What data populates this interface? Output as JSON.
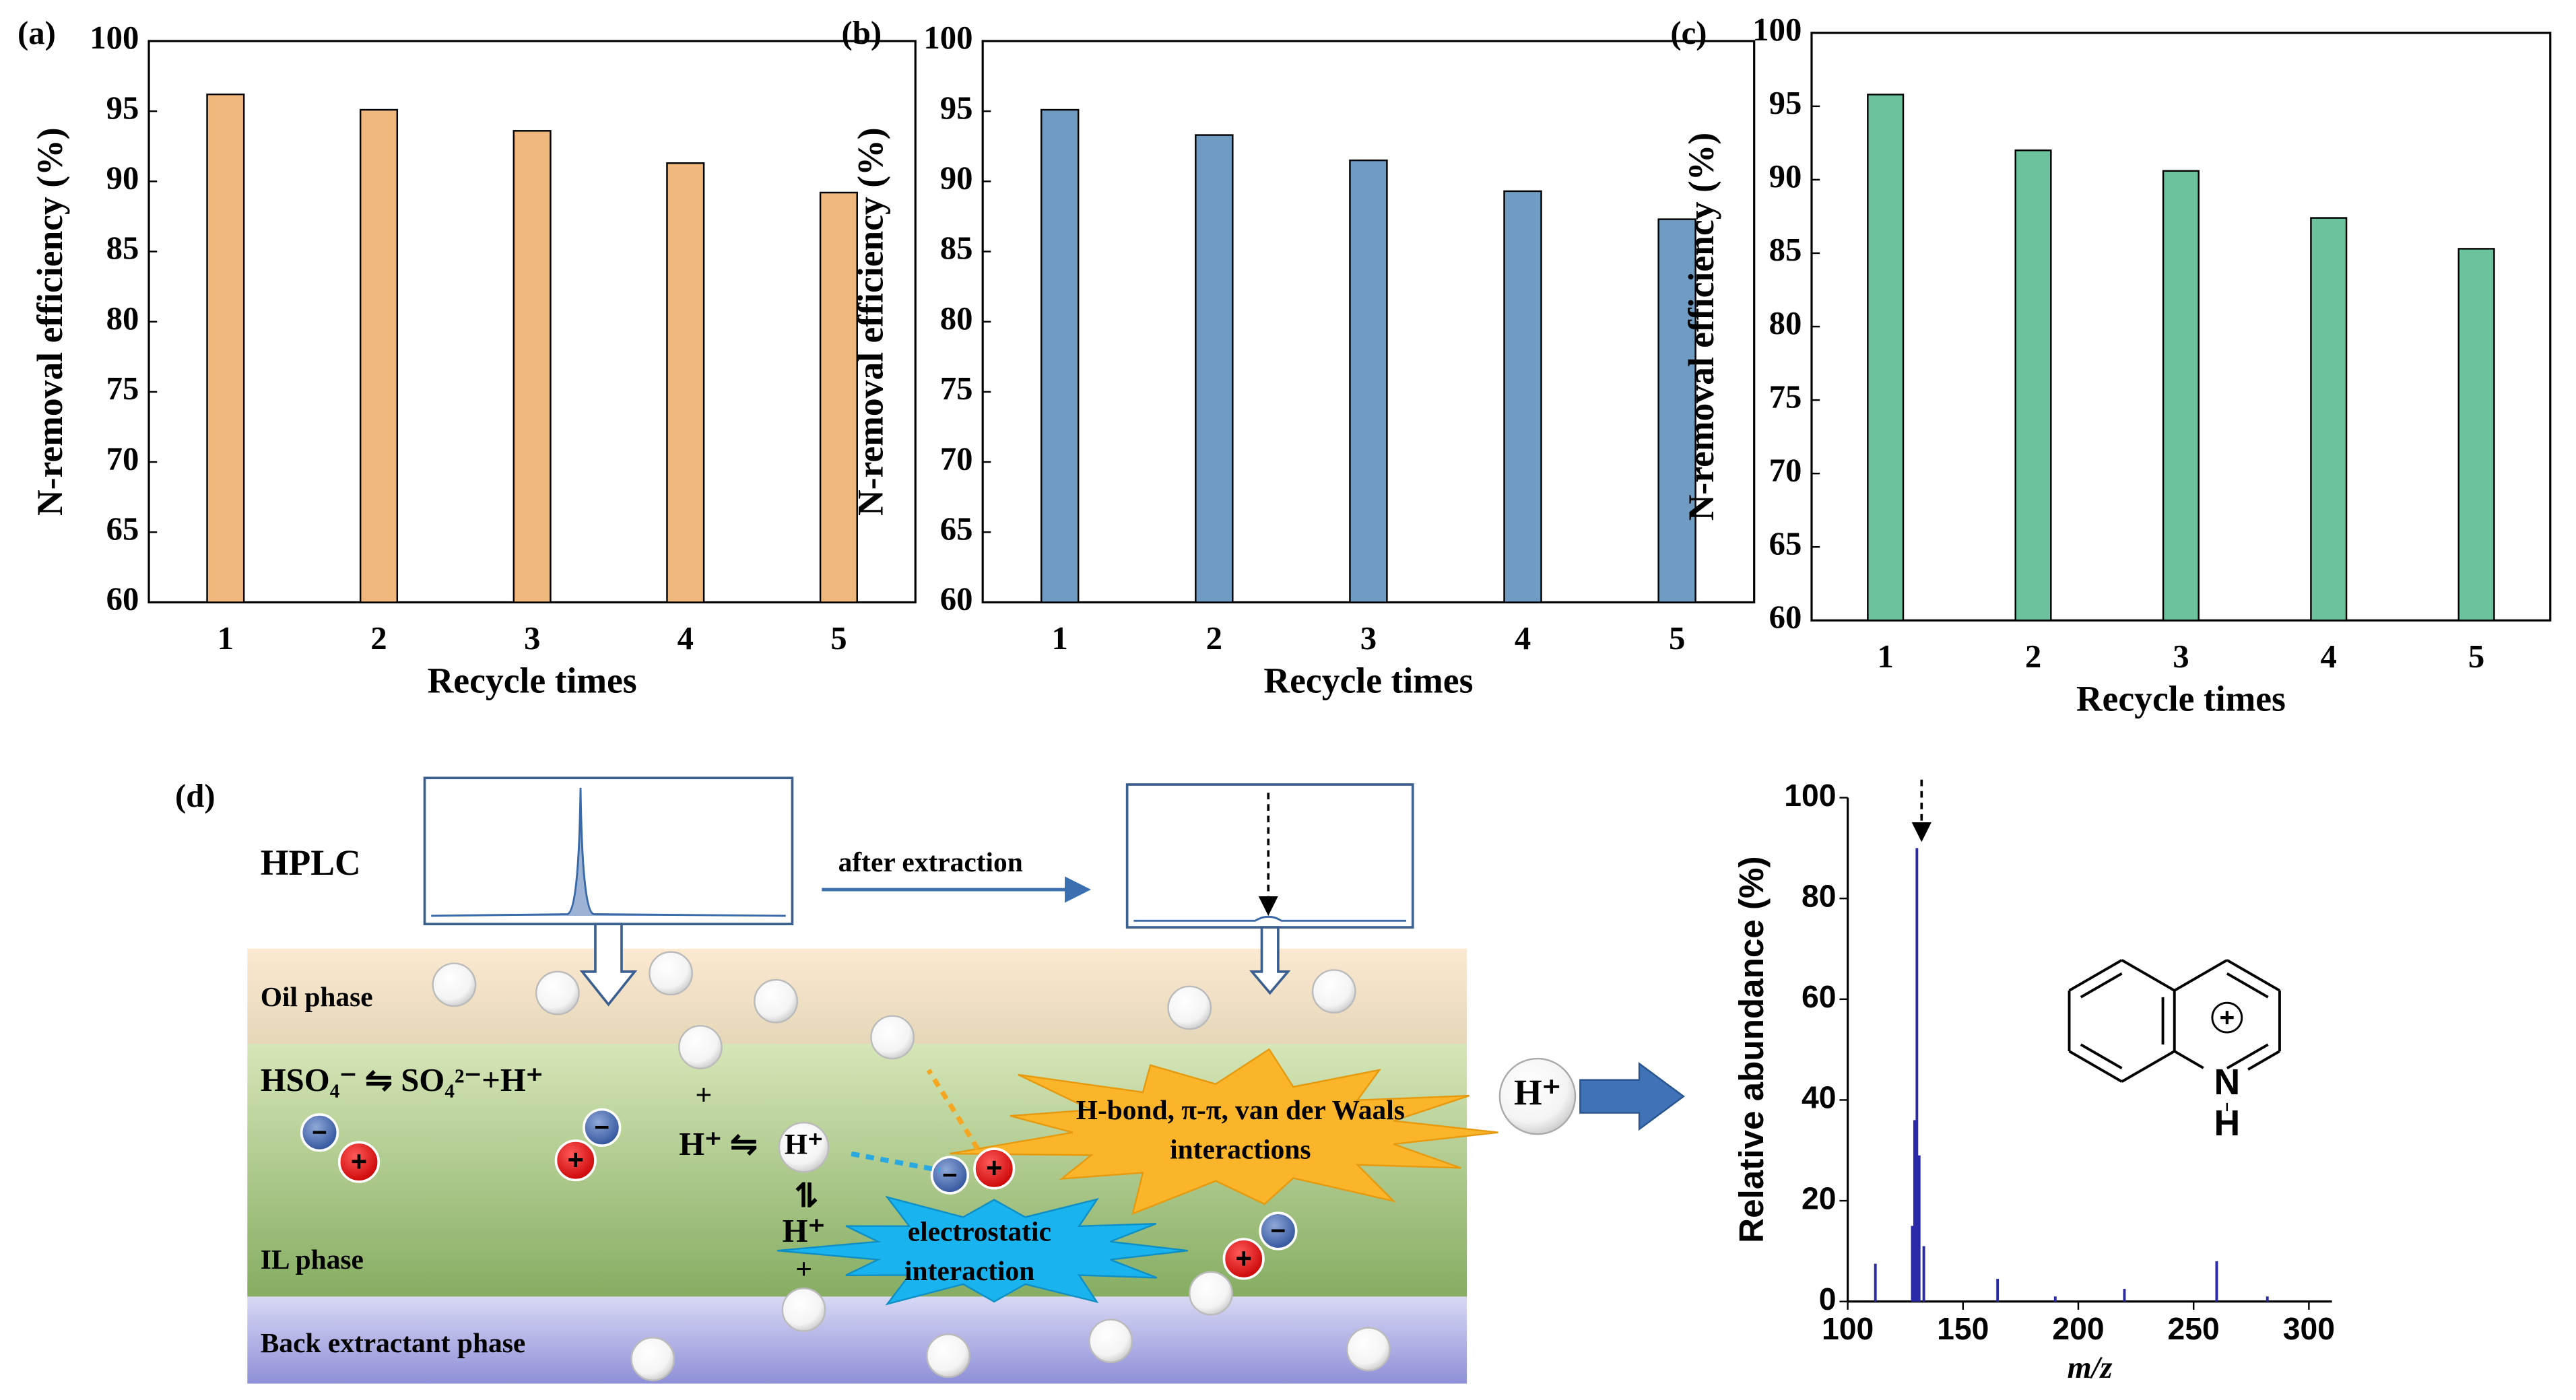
{
  "chart_data": [
    {
      "type": "bar",
      "panel_label": "(a)",
      "xlabel": "Recycle times",
      "ylabel": "N-removal efficiency (%)",
      "categories": [
        "1",
        "2",
        "3",
        "4",
        "5"
      ],
      "values": [
        96.2,
        95.1,
        93.6,
        91.3,
        89.2
      ],
      "color": "#f0b87c",
      "ylim": [
        60,
        100
      ],
      "yticks": [
        60,
        65,
        70,
        75,
        80,
        85,
        90,
        95,
        100
      ]
    },
    {
      "type": "bar",
      "panel_label": "(b)",
      "xlabel": "Recycle times",
      "ylabel": "N-removal efficiency (%)",
      "categories": [
        "1",
        "2",
        "3",
        "4",
        "5"
      ],
      "values": [
        95.1,
        93.3,
        91.5,
        89.3,
        87.3
      ],
      "color": "#709cc4",
      "ylim": [
        60,
        100
      ],
      "yticks": [
        60,
        65,
        70,
        75,
        80,
        85,
        90,
        95,
        100
      ]
    },
    {
      "type": "bar",
      "panel_label": "(c)",
      "xlabel": "Recycle times",
      "ylabel": "N-removal efficiency (%)",
      "categories": [
        "1",
        "2",
        "3",
        "4",
        "5"
      ],
      "values": [
        95.8,
        92.0,
        90.6,
        87.4,
        85.3
      ],
      "color": "#6cc29d",
      "ylim": [
        60,
        100
      ],
      "yticks": [
        60,
        65,
        70,
        75,
        80,
        85,
        90,
        95,
        100
      ]
    },
    {
      "type": "stem",
      "xlabel": "m/z",
      "ylabel": "Relative abundance (%)",
      "color": "#2a2aa8",
      "x": [
        112,
        128,
        129,
        130,
        131,
        133,
        165,
        190,
        220,
        260,
        282
      ],
      "values": [
        7.5,
        15,
        36,
        90,
        29,
        11,
        4.5,
        1,
        2.5,
        8,
        1
      ],
      "xlim": [
        100,
        310
      ],
      "xticks": [
        100,
        150,
        200,
        250,
        300
      ],
      "ylim": [
        0,
        100
      ],
      "yticks": [
        0,
        20,
        40,
        60,
        80,
        100
      ]
    }
  ],
  "diagram": {
    "panel_label": "(d)",
    "hplc": "HPLC",
    "after": "after extraction",
    "oil": "Oil phase",
    "equilibrium1": "HSO₄⁻ ⇋ SO₄²⁻+H⁺",
    "plus": "+",
    "equilibrium2": "H⁺ ⇋",
    "proton": "H⁺",
    "vertical_equilibrium": "⇌",
    "hbond": [
      "H-bond, π-π, van der Waals",
      "interactions"
    ],
    "electro": [
      "electrostatic",
      "interaction"
    ],
    "il": "IL phase",
    "back": "Back extractant phase",
    "cation": "+",
    "anion": "−",
    "nitrogen": "N",
    "hydrogen": "H",
    "charge": "+"
  }
}
